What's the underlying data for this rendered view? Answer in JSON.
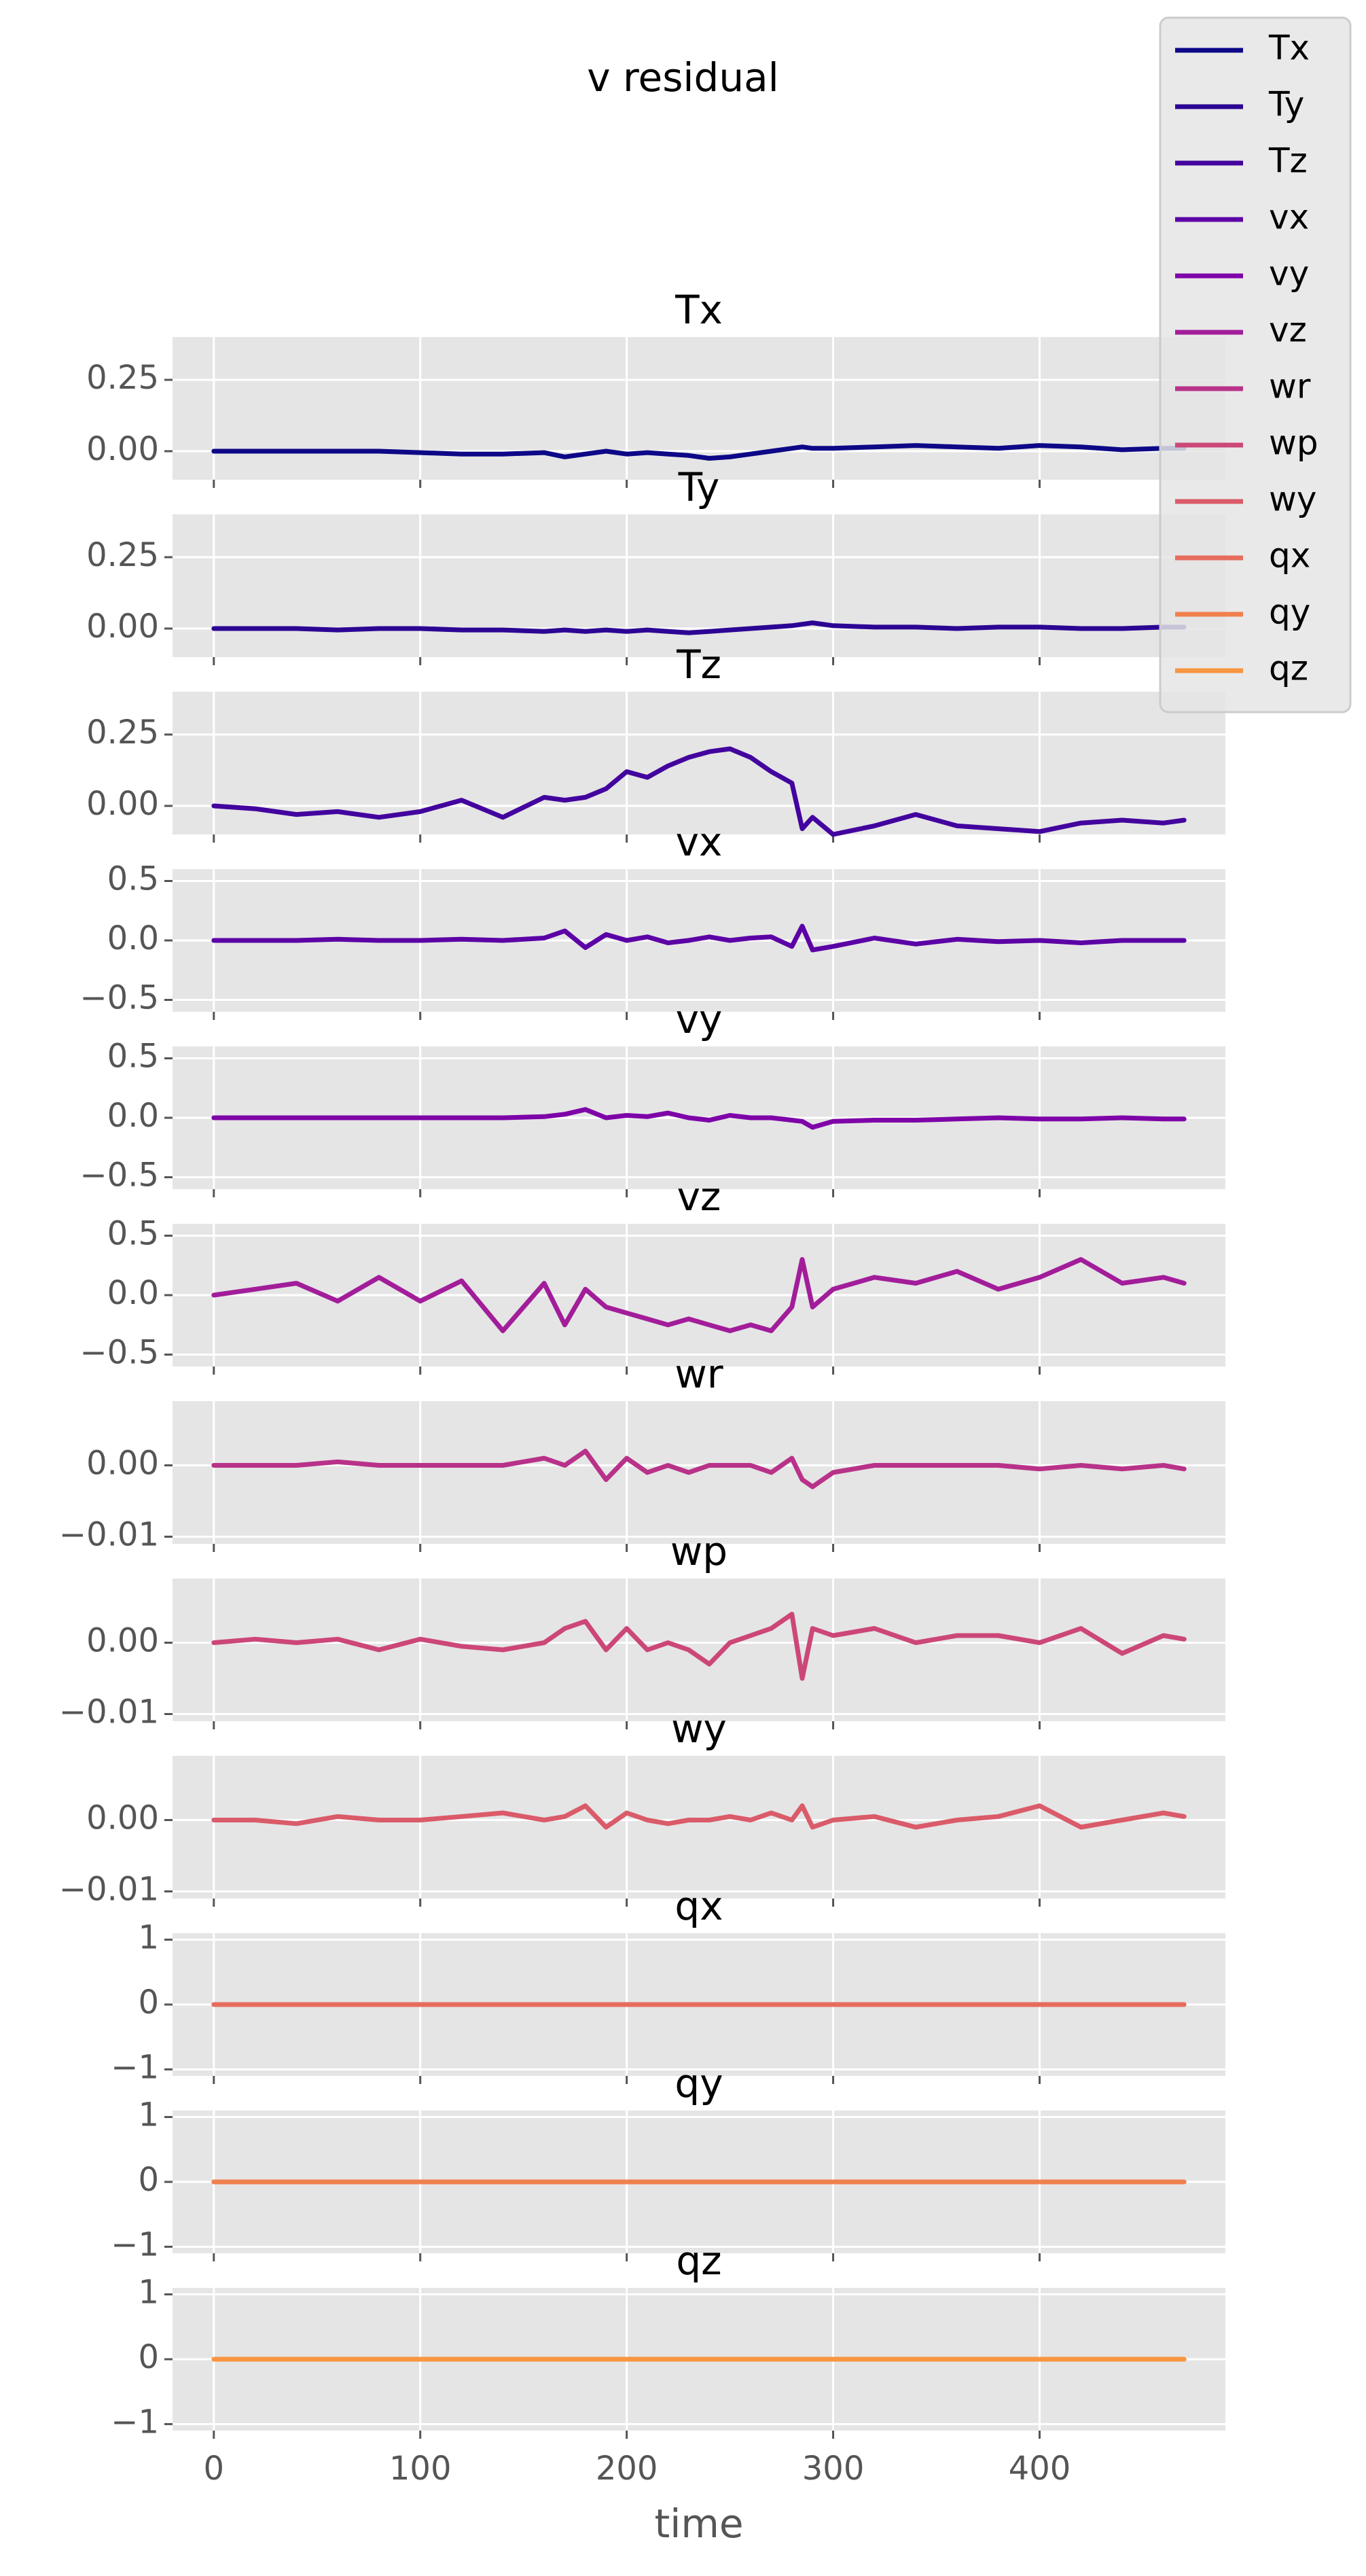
{
  "figure": {
    "suptitle": "v residual",
    "xlabel": "time"
  },
  "legend": {
    "placement": "upper-right",
    "entries": [
      {
        "label": "Tx",
        "color": "#0d0887"
      },
      {
        "label": "Ty",
        "color": "#2c0594"
      },
      {
        "label": "Tz",
        "color": "#43039e"
      },
      {
        "label": "vx",
        "color": "#5c01a6"
      },
      {
        "label": "vy",
        "color": "#7e03a8"
      },
      {
        "label": "vz",
        "color": "#a21d9a"
      },
      {
        "label": "wr",
        "color": "#b83289"
      },
      {
        "label": "wp",
        "color": "#cc4778"
      },
      {
        "label": "wy",
        "color": "#da5b69"
      },
      {
        "label": "qx",
        "color": "#e66c5c"
      },
      {
        "label": "qy",
        "color": "#f0804e"
      },
      {
        "label": "qz",
        "color": "#f89540"
      }
    ]
  },
  "chart_data": {
    "type": "line",
    "title": "v residual",
    "xlabel": "time",
    "xlim": [
      -20,
      490
    ],
    "xticks": [
      0,
      100,
      200,
      300,
      400
    ],
    "xtick_labels": [
      "0",
      "100",
      "200",
      "300",
      "400"
    ],
    "grid": true,
    "legend": "top-right",
    "x": [
      0,
      20,
      40,
      60,
      80,
      100,
      120,
      140,
      160,
      170,
      180,
      190,
      200,
      210,
      220,
      230,
      240,
      250,
      260,
      270,
      280,
      285,
      290,
      300,
      320,
      340,
      360,
      380,
      400,
      420,
      440,
      460,
      470
    ],
    "series": [
      {
        "name": "Tx",
        "color": "#0d0887",
        "title": "Tx",
        "ylim": [
          -0.1,
          0.4
        ],
        "yticks": [
          0.0,
          0.25
        ],
        "ytick_labels": [
          "0.00",
          "0.25"
        ],
        "values": [
          0.0,
          0.0,
          0.0,
          0.0,
          0.0,
          -0.005,
          -0.01,
          -0.01,
          -0.005,
          -0.02,
          -0.01,
          0.0,
          -0.01,
          -0.005,
          -0.01,
          -0.015,
          -0.025,
          -0.02,
          -0.01,
          0.0,
          0.01,
          0.015,
          0.01,
          0.01,
          0.015,
          0.02,
          0.015,
          0.01,
          0.02,
          0.015,
          0.005,
          0.01,
          0.01
        ]
      },
      {
        "name": "Ty",
        "color": "#2c0594",
        "title": "Ty",
        "ylim": [
          -0.1,
          0.4
        ],
        "yticks": [
          0.0,
          0.25
        ],
        "ytick_labels": [
          "0.00",
          "0.25"
        ],
        "values": [
          0.0,
          0.0,
          0.0,
          -0.005,
          0.0,
          0.0,
          -0.005,
          -0.005,
          -0.01,
          -0.005,
          -0.01,
          -0.005,
          -0.01,
          -0.005,
          -0.01,
          -0.015,
          -0.01,
          -0.005,
          0.0,
          0.005,
          0.01,
          0.015,
          0.02,
          0.01,
          0.005,
          0.005,
          0.0,
          0.005,
          0.005,
          0.0,
          0.0,
          0.005,
          0.005
        ]
      },
      {
        "name": "Tz",
        "color": "#43039e",
        "title": "Tz",
        "ylim": [
          -0.1,
          0.4
        ],
        "yticks": [
          0.0,
          0.25
        ],
        "ytick_labels": [
          "0.00",
          "0.25"
        ],
        "values": [
          0.0,
          -0.01,
          -0.03,
          -0.02,
          -0.04,
          -0.02,
          0.02,
          -0.04,
          0.03,
          0.02,
          0.03,
          0.06,
          0.12,
          0.1,
          0.14,
          0.17,
          0.19,
          0.2,
          0.17,
          0.12,
          0.08,
          -0.08,
          -0.04,
          -0.1,
          -0.07,
          -0.03,
          -0.07,
          -0.08,
          -0.09,
          -0.06,
          -0.05,
          -0.06,
          -0.05
        ]
      },
      {
        "name": "vx",
        "color": "#5c01a6",
        "title": "vx",
        "ylim": [
          -0.6,
          0.6
        ],
        "yticks": [
          -0.5,
          0.0,
          0.5
        ],
        "ytick_labels": [
          "−0.5",
          "0.0",
          "0.5"
        ],
        "values": [
          0.0,
          0.0,
          0.0,
          0.01,
          0.0,
          0.0,
          0.01,
          0.0,
          0.02,
          0.08,
          -0.06,
          0.05,
          0.0,
          0.03,
          -0.02,
          0.0,
          0.03,
          0.0,
          0.02,
          0.03,
          -0.05,
          0.12,
          -0.08,
          -0.05,
          0.02,
          -0.03,
          0.01,
          -0.01,
          0.0,
          -0.02,
          0.0,
          0.0,
          0.0
        ]
      },
      {
        "name": "vy",
        "color": "#7e03a8",
        "title": "vy",
        "ylim": [
          -0.6,
          0.6
        ],
        "yticks": [
          -0.5,
          0.0,
          0.5
        ],
        "ytick_labels": [
          "−0.5",
          "0.0",
          "0.5"
        ],
        "values": [
          0.0,
          0.0,
          0.0,
          0.0,
          0.0,
          0.0,
          0.0,
          0.0,
          0.01,
          0.03,
          0.07,
          0.0,
          0.02,
          0.01,
          0.04,
          0.0,
          -0.02,
          0.02,
          0.0,
          0.0,
          -0.02,
          -0.03,
          -0.08,
          -0.03,
          -0.02,
          -0.02,
          -0.01,
          0.0,
          -0.01,
          -0.01,
          0.0,
          -0.01,
          -0.01
        ]
      },
      {
        "name": "vz",
        "color": "#a21d9a",
        "title": "vz",
        "ylim": [
          -0.6,
          0.6
        ],
        "yticks": [
          -0.5,
          0.0,
          0.5
        ],
        "ytick_labels": [
          "−0.5",
          "0.0",
          "0.5"
        ],
        "values": [
          0.0,
          0.05,
          0.1,
          -0.05,
          0.15,
          -0.05,
          0.12,
          -0.3,
          0.1,
          -0.25,
          0.05,
          -0.1,
          -0.15,
          -0.2,
          -0.25,
          -0.2,
          -0.25,
          -0.3,
          -0.25,
          -0.3,
          -0.1,
          0.3,
          -0.1,
          0.05,
          0.15,
          0.1,
          0.2,
          0.05,
          0.15,
          0.3,
          0.1,
          0.15,
          0.1
        ]
      },
      {
        "name": "wr",
        "color": "#b83289",
        "title": "wr",
        "ylim": [
          -0.011,
          0.009
        ],
        "yticks": [
          -0.01,
          0.0
        ],
        "ytick_labels": [
          "−0.01",
          "0.00"
        ],
        "values": [
          0.0,
          0.0,
          0.0,
          0.0005,
          0.0,
          0.0,
          0.0,
          0.0,
          0.001,
          0.0,
          0.002,
          -0.002,
          0.001,
          -0.001,
          0.0,
          -0.001,
          0.0,
          0.0,
          0.0,
          -0.001,
          0.001,
          -0.002,
          -0.003,
          -0.001,
          0.0,
          0.0,
          0.0,
          0.0,
          -0.0005,
          0.0,
          -0.0005,
          0.0,
          -0.0005
        ]
      },
      {
        "name": "wp",
        "color": "#cc4778",
        "title": "wp",
        "ylim": [
          -0.011,
          0.009
        ],
        "yticks": [
          -0.01,
          0.0
        ],
        "ytick_labels": [
          "−0.01",
          "0.00"
        ],
        "values": [
          0.0,
          0.0005,
          0.0,
          0.0005,
          -0.001,
          0.0005,
          -0.0005,
          -0.001,
          0.0,
          0.002,
          0.003,
          -0.001,
          0.002,
          -0.001,
          0.0,
          -0.001,
          -0.003,
          0.0,
          0.001,
          0.002,
          0.004,
          -0.005,
          0.002,
          0.001,
          0.002,
          0.0,
          0.001,
          0.001,
          0.0,
          0.002,
          -0.0015,
          0.001,
          0.0005
        ]
      },
      {
        "name": "wy",
        "color": "#da5b69",
        "title": "wy",
        "ylim": [
          -0.011,
          0.009
        ],
        "yticks": [
          -0.01,
          0.0
        ],
        "ytick_labels": [
          "−0.01",
          "0.00"
        ],
        "values": [
          0.0,
          0.0,
          -0.0005,
          0.0005,
          0.0,
          0.0,
          0.0005,
          0.001,
          0.0,
          0.0005,
          0.002,
          -0.001,
          0.001,
          0.0,
          -0.0005,
          0.0,
          0.0,
          0.0005,
          0.0,
          0.001,
          0.0,
          0.002,
          -0.001,
          0.0,
          0.0005,
          -0.001,
          0.0,
          0.0005,
          0.002,
          -0.001,
          0.0,
          0.001,
          0.0005
        ]
      },
      {
        "name": "qx",
        "color": "#e66c5c",
        "title": "qx",
        "ylim": [
          -1.1,
          1.1
        ],
        "yticks": [
          -1,
          0,
          1
        ],
        "ytick_labels": [
          "−1",
          "0",
          "1"
        ],
        "values": [
          0,
          0,
          0,
          0,
          0,
          0,
          0,
          0,
          0,
          0,
          0,
          0,
          0,
          0,
          0,
          0,
          0,
          0,
          0,
          0,
          0,
          0,
          0,
          0,
          0,
          0,
          0,
          0,
          0,
          0,
          0,
          0,
          0
        ]
      },
      {
        "name": "qy",
        "color": "#f0804e",
        "title": "qy",
        "ylim": [
          -1.1,
          1.1
        ],
        "yticks": [
          -1,
          0,
          1
        ],
        "ytick_labels": [
          "−1",
          "0",
          "1"
        ],
        "values": [
          0,
          0,
          0,
          0,
          0,
          0,
          0,
          0,
          0,
          0,
          0,
          0,
          0,
          0,
          0,
          0,
          0,
          0,
          0,
          0,
          0,
          0,
          0,
          0,
          0,
          0,
          0,
          0,
          0,
          0,
          0,
          0,
          0
        ]
      },
      {
        "name": "qz",
        "color": "#f89540",
        "title": "qz",
        "ylim": [
          -1.1,
          1.1
        ],
        "yticks": [
          -1,
          0,
          1
        ],
        "ytick_labels": [
          "−1",
          "0",
          "1"
        ],
        "values": [
          0,
          0,
          0,
          0,
          0,
          0,
          0,
          0,
          0,
          0,
          0,
          0,
          0,
          0,
          0,
          0,
          0,
          0,
          0,
          0,
          0,
          0,
          0,
          0,
          0,
          0,
          0,
          0,
          0,
          0,
          0,
          0,
          0
        ]
      }
    ]
  }
}
